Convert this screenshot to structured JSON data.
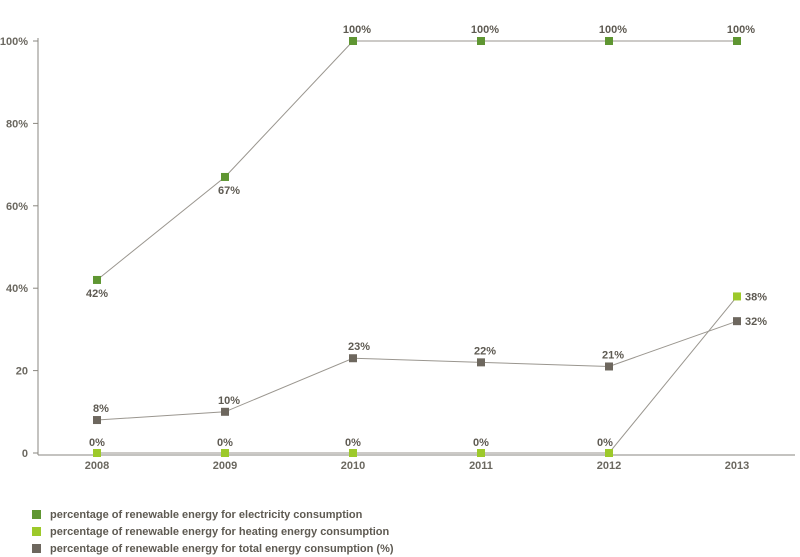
{
  "chart_data": {
    "type": "line",
    "categories": [
      "2008",
      "2009",
      "2010",
      "2011",
      "2012",
      "2013"
    ],
    "y_tick_labels": [
      "0",
      "20",
      "40%",
      "60%",
      "80%",
      "100%"
    ],
    "y_tick_values": [
      0,
      20,
      40,
      60,
      80,
      100
    ],
    "ylim": [
      0,
      100
    ],
    "grid": false,
    "legend_position": "bottom-left",
    "series": [
      {
        "name": "percentage of renewable energy for electricity consumption",
        "color": "#5f9632",
        "values": [
          42,
          67,
          100,
          100,
          100,
          100
        ],
        "labels": [
          "42%",
          "67%",
          "100%",
          "100%",
          "100%",
          "100%"
        ]
      },
      {
        "name": "percentage of renewable energy for heating energy consumption",
        "color": "#9dc92a",
        "values": [
          0,
          0,
          0,
          0,
          0,
          38
        ],
        "labels": [
          "0%",
          "0%",
          "0%",
          "0%",
          "0%",
          "38%"
        ]
      },
      {
        "name": "percentage of renewable energy for total energy consumption (%)",
        "color": "#6d675e",
        "values": [
          8,
          10,
          23,
          22,
          21,
          32
        ],
        "labels": [
          "8%",
          "10%",
          "23%",
          "22%",
          "21%",
          "32%"
        ]
      }
    ]
  }
}
